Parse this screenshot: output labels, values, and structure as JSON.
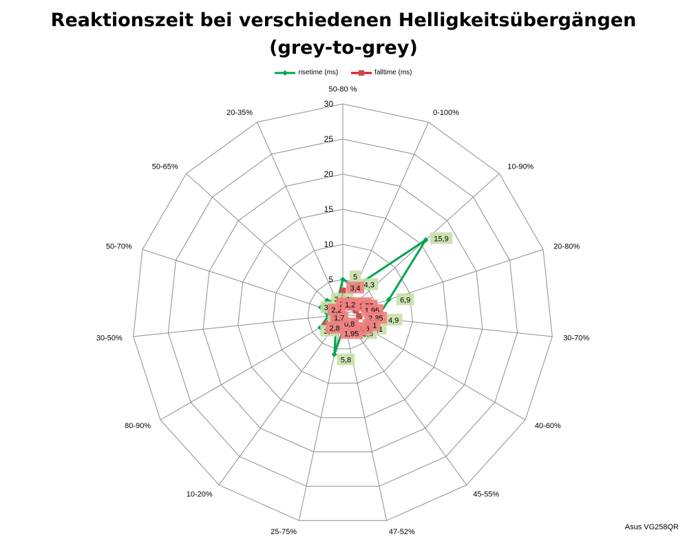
{
  "chart_data": {
    "type": "radar",
    "title_lines": [
      "Reaktionszeit bei verschiedenen Helligkeitsübergängen",
      "(grey-to-grey)"
    ],
    "categories": [
      "50-80 %",
      "0-100%",
      "10-90%",
      "20-80%",
      "30-70%",
      "40-60%",
      "45-55%",
      "47-52%",
      "25-75%",
      "10-20%",
      "80-90%",
      "30-50%",
      "50-70%",
      "50-65%",
      "20-35%"
    ],
    "axis_ticks": [
      0,
      5,
      10,
      15,
      20,
      25,
      30
    ],
    "rmax": 30,
    "series": [
      {
        "name": "risetime (ms)",
        "color": "#00a550",
        "label_bg": "#c6e0a8",
        "values": [
          5,
          4.3,
          15.9,
          6.9,
          4.9,
          3.1,
          2.5,
          1.4,
          5.8,
          1.6,
          3.7,
          2.1,
          3.3,
          3,
          2
        ],
        "labels": [
          "5",
          "4,3",
          "15,9",
          "6,9",
          "4,9",
          "3,1",
          "2,5",
          "1,4",
          "5,8",
          "1,6",
          "3,7",
          "2,1",
          "3,3",
          "3",
          "2"
        ]
      },
      {
        "name": "falltime (ms)",
        "color": "#c0504d",
        "line_color": "#e0101a",
        "label_bg": "#f08080",
        "values": [
          3.4,
          1.35,
          1.55,
          1.95,
          2.35,
          2.1,
          1.6,
          1.4,
          1.95,
          0.8,
          2.8,
          1.7,
          2.2,
          2,
          1.2
        ],
        "labels": [
          "3,4",
          "1,35",
          "1,55",
          "1,95",
          "2,35",
          "2,1",
          "1,6",
          "1,4",
          "1,95",
          "0,8",
          "2,8",
          "1,7",
          "2,2",
          "2",
          "1,2"
        ]
      }
    ],
    "legend_position": "top",
    "grid": true
  },
  "credit": "Asus VG258QR"
}
